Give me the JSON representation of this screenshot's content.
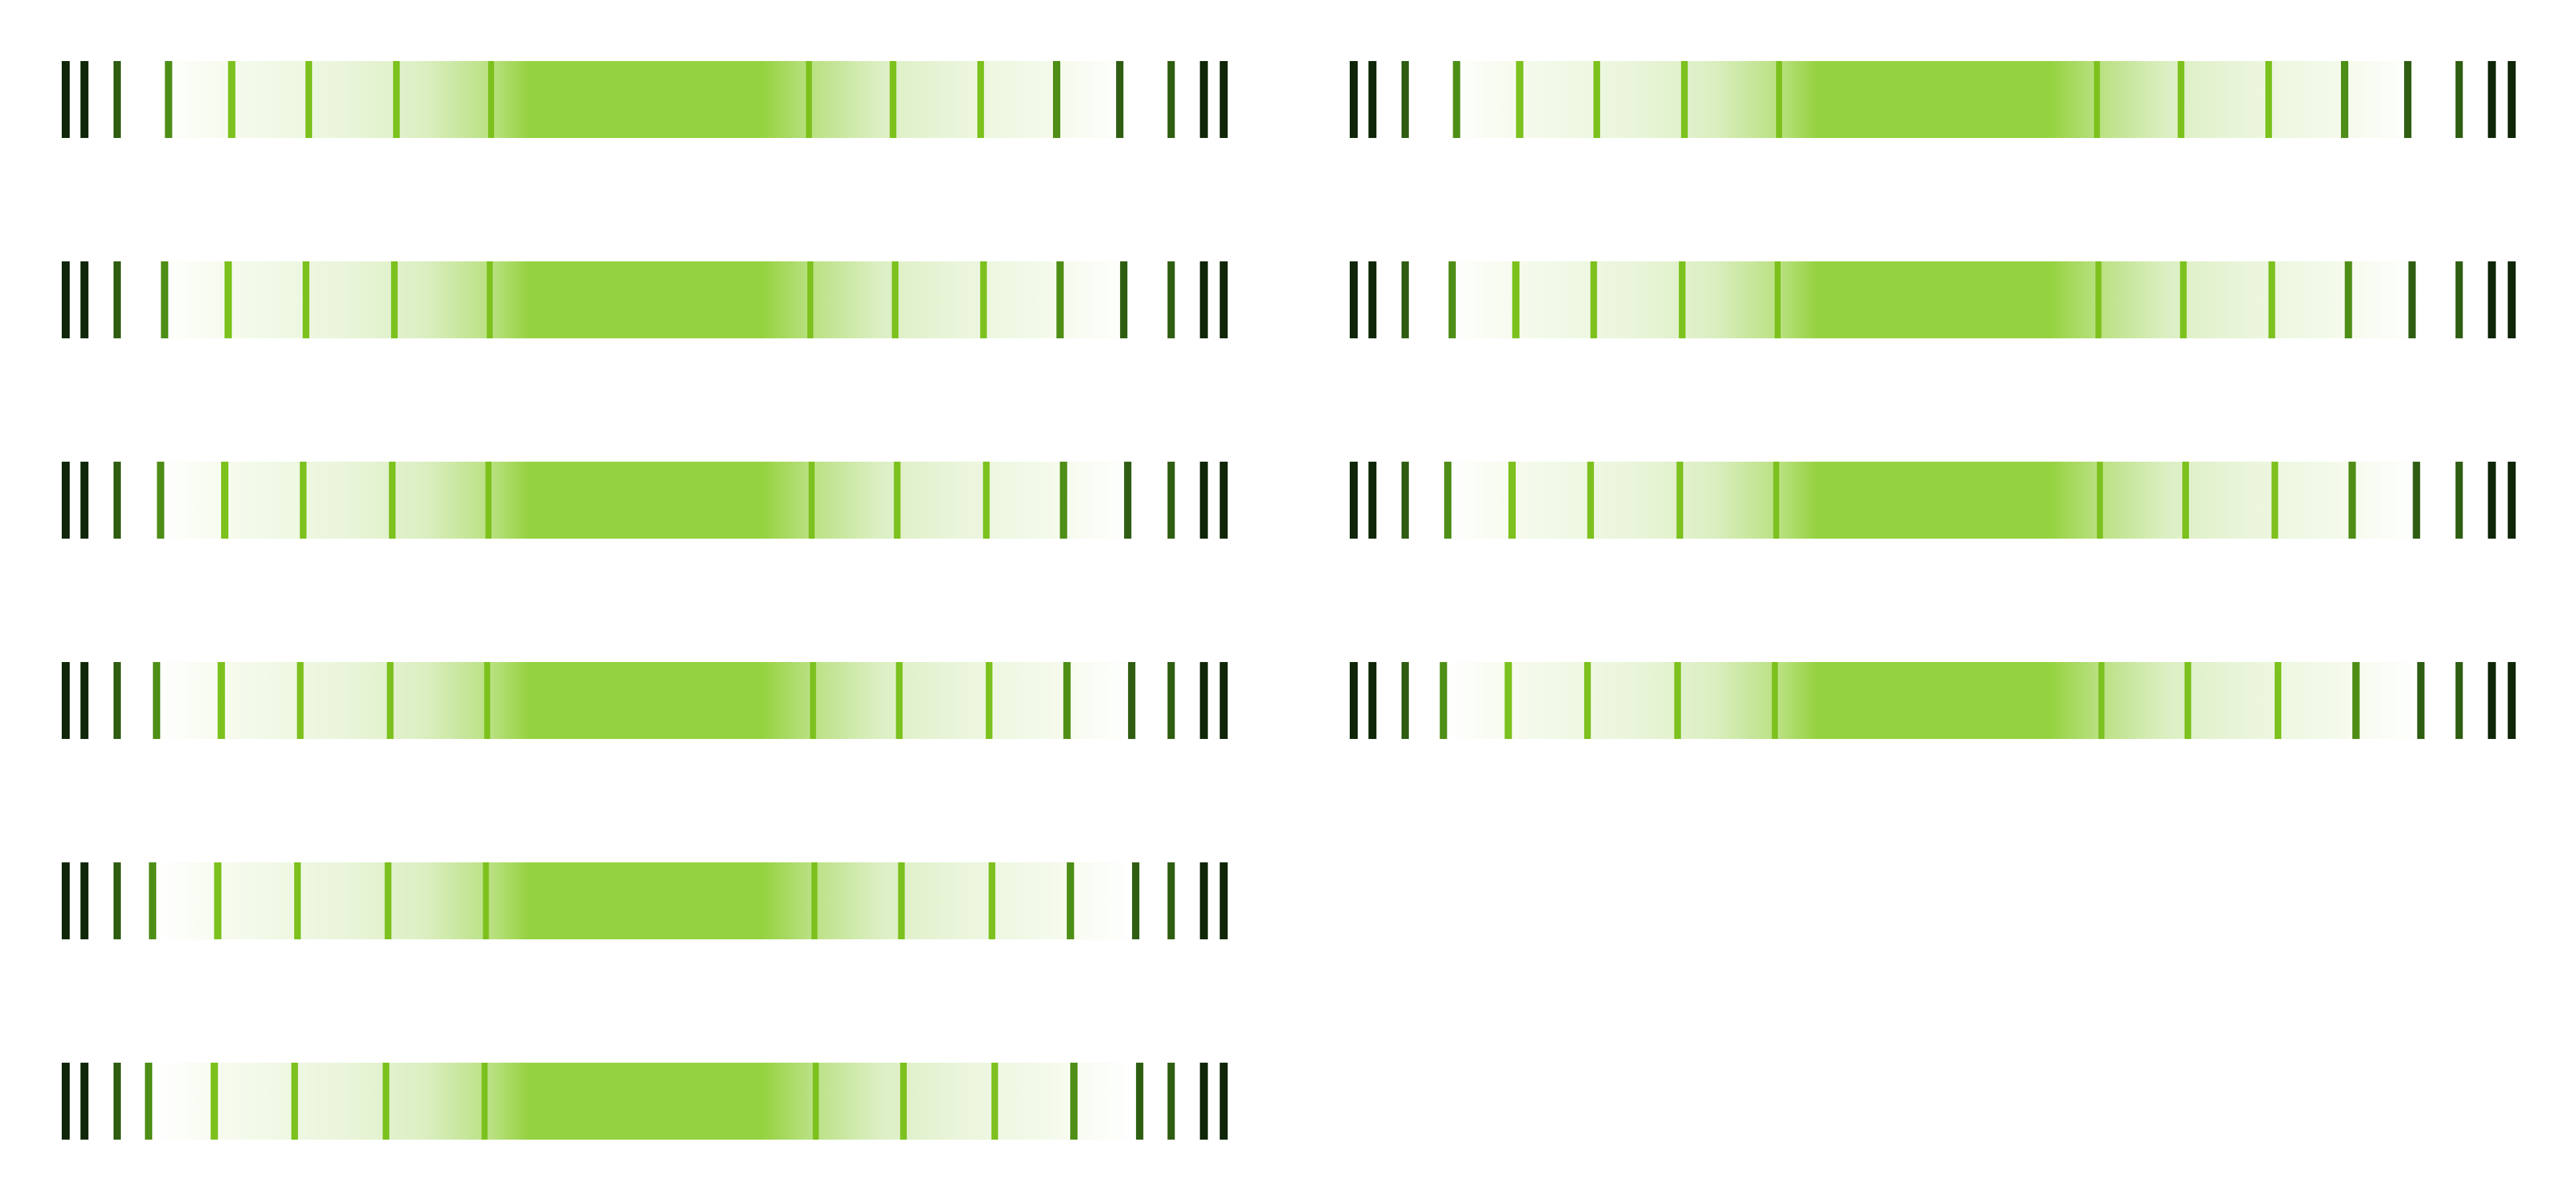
{
  "colors": {
    "background": "#ffffff",
    "band_core": "#95d240",
    "line_bright": "#7cc11d",
    "line_mid": "#4f8e16",
    "line_dark": "#2f5e12",
    "line_darkest": "#0f2708",
    "fill_pale": "#f3faea"
  },
  "strips": [
    {
      "id": "strip-left-1",
      "column": "left",
      "row": 1
    },
    {
      "id": "strip-left-2",
      "column": "left",
      "row": 2
    },
    {
      "id": "strip-left-3",
      "column": "left",
      "row": 3
    },
    {
      "id": "strip-left-4",
      "column": "left",
      "row": 4
    },
    {
      "id": "strip-left-5",
      "column": "left",
      "row": 5
    },
    {
      "id": "strip-left-6",
      "column": "left",
      "row": 6
    },
    {
      "id": "strip-right-1",
      "column": "right",
      "row": 1
    },
    {
      "id": "strip-right-2",
      "column": "right",
      "row": 2
    },
    {
      "id": "strip-right-3",
      "column": "right",
      "row": 3
    },
    {
      "id": "strip-right-4",
      "column": "right",
      "row": 4
    }
  ]
}
